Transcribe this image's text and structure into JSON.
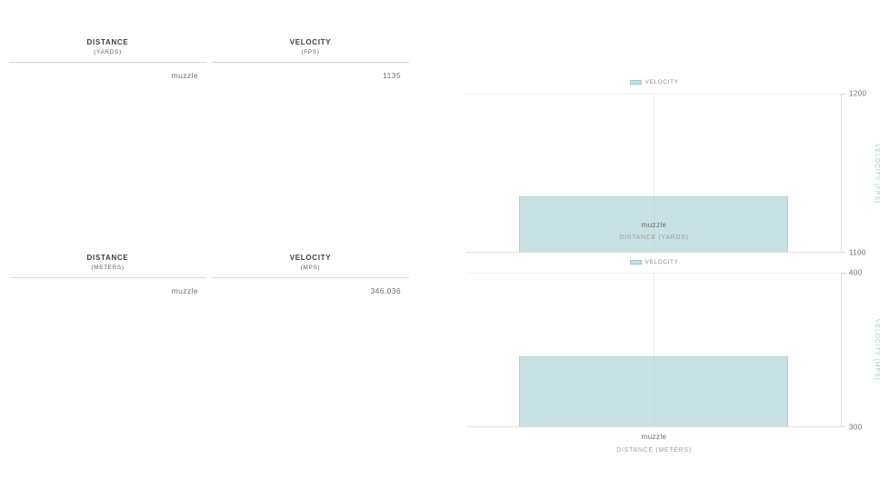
{
  "colors": {
    "bar_fill": "#c2dee1",
    "bar_border": "#a9d1d6",
    "axis_title_teal": "#a2cdd4",
    "tick_text": "#6b6b6b",
    "table_header_text": "#3d3d3d",
    "table_value_text": "#6f6f6f",
    "gridline": "#efefef"
  },
  "tables": [
    {
      "columns": [
        {
          "title": "DISTANCE",
          "unit": "(YARDS)"
        },
        {
          "title": "VELOCITY",
          "unit": "(FPS)"
        }
      ],
      "rows": [
        {
          "distance": "muzzle",
          "velocity": "1135"
        }
      ]
    },
    {
      "columns": [
        {
          "title": "DISTANCE",
          "unit": "(METERS)"
        },
        {
          "title": "VELOCITY",
          "unit": "(MPS)"
        }
      ],
      "rows": [
        {
          "distance": "muzzle",
          "velocity": "346.036"
        }
      ]
    }
  ],
  "chart_data": [
    {
      "type": "bar",
      "legend": "VELOCITY",
      "categories": [
        "muzzle"
      ],
      "values": [
        1135
      ],
      "xlabel": "DISTANCE (YARDS)",
      "ylabel": "VELOCITY (FPS)",
      "ylim": [
        1100,
        1200
      ],
      "yticks": [
        1100,
        1200
      ],
      "legend_position": "top",
      "grid": true
    },
    {
      "type": "bar",
      "legend": "VELOCITY",
      "categories": [
        "muzzle"
      ],
      "values": [
        346.036
      ],
      "xlabel": "DISTANCE (METERS)",
      "ylabel": "VELOCITY (MPS)",
      "ylim": [
        300,
        400
      ],
      "yticks": [
        300,
        400
      ],
      "legend_position": "top",
      "grid": true
    }
  ]
}
